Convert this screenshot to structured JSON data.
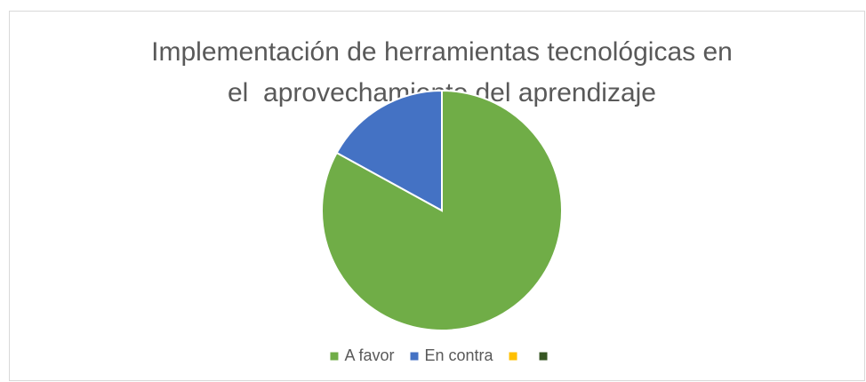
{
  "chart_data": {
    "type": "pie",
    "title": [
      "Implementación de herramientas tecnológicas en",
      "el  aprovechamiento del aprendizaje"
    ],
    "categories": [
      "A favor",
      "En contra",
      null,
      null
    ],
    "values": [
      83,
      17,
      0,
      0
    ],
    "colors": [
      "#70ad47",
      "#4472c4",
      "#ffc000",
      "#375623"
    ],
    "legend": "bottom"
  }
}
